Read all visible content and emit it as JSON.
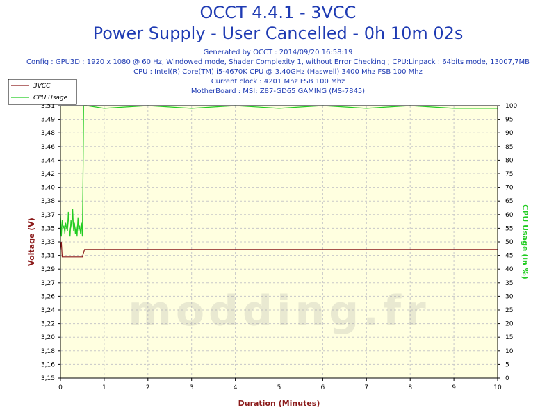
{
  "header": {
    "title": "OCCT 4.4.1 - 3VCC",
    "subtitle": "Power Supply - User Cancelled - 0h 10m 02s",
    "info_lines": [
      "Generated by OCCT : 2014/09/20 16:58:19",
      "Config : GPU3D : 1920 x 1080 @ 60 Hz, Windowed mode, Shader Complexity 1, without Error Checking ; CPU:Linpack : 64bits mode, 13007,7MB",
      "CPU : Intel(R) Core(TM) i5-4670K CPU @ 3.40GHz (Haswell) 3400 Mhz FSB 100 Mhz",
      "Current clock : 4201 Mhz FSB 100 Mhz",
      "MotherBoard : MSI: Z87-GD65 GAMING (MS-7845)"
    ]
  },
  "watermark": "modding.fr",
  "colors": {
    "title": "#1f3bb3",
    "voltage": "#8b1a1a",
    "cpu": "#22cc22",
    "plot_bg": "#ffffe0",
    "grid": "#c8c8c8"
  },
  "chart_data": {
    "type": "line",
    "xlabel": "Duration (Minutes)",
    "ylabel_left": "Voltage (V)",
    "ylabel_right": "CPU Usage (in %)",
    "xlim": [
      0,
      10
    ],
    "ylim_left": [
      3.15,
      3.51
    ],
    "ylim_right": [
      0,
      100
    ],
    "x_ticks": [
      "0",
      "1",
      "2",
      "3",
      "4",
      "5",
      "6",
      "7",
      "8",
      "9",
      "10"
    ],
    "y_left_ticks": [
      "3,15",
      "3,16",
      "3,18",
      "3,20",
      "3,22",
      "3,24",
      "3,26",
      "3,27",
      "3,29",
      "3,31",
      "3,33",
      "3,35",
      "3,37",
      "3,38",
      "3,40",
      "3,42",
      "3,44",
      "3,46",
      "3,48",
      "3,49",
      "3,51"
    ],
    "y_right_ticks": [
      "0",
      "5",
      "10",
      "15",
      "20",
      "25",
      "30",
      "35",
      "40",
      "45",
      "50",
      "55",
      "60",
      "65",
      "70",
      "75",
      "80",
      "85",
      "90",
      "95",
      "100"
    ],
    "legend_position": "top-left",
    "grid": true,
    "series": [
      {
        "name": "3VCC",
        "axis": "left",
        "x": [
          0,
          0.02,
          0.04,
          0.05,
          0.1,
          0.3,
          0.5,
          0.55,
          0.6,
          1.0,
          2.0,
          3.0,
          4.0,
          5.0,
          5.3,
          5.35,
          6.0,
          7.0,
          8.0,
          9.0,
          10.0
        ],
        "values": [
          3.32,
          3.33,
          3.31,
          3.31,
          3.31,
          3.31,
          3.31,
          3.32,
          3.32,
          3.32,
          3.32,
          3.32,
          3.32,
          3.32,
          3.32,
          3.32,
          3.32,
          3.32,
          3.32,
          3.32,
          3.32
        ]
      },
      {
        "name": "CPU Usage",
        "axis": "right",
        "x": [
          0,
          0.02,
          0.04,
          0.06,
          0.08,
          0.1,
          0.12,
          0.14,
          0.16,
          0.18,
          0.2,
          0.22,
          0.24,
          0.26,
          0.28,
          0.3,
          0.32,
          0.34,
          0.36,
          0.38,
          0.4,
          0.42,
          0.44,
          0.46,
          0.48,
          0.5,
          0.52,
          0.53,
          0.55,
          0.6,
          1.0,
          2.0,
          3.0,
          4.0,
          5.0,
          6.0,
          7.0,
          8.0,
          9.0,
          10.0
        ],
        "values": [
          60,
          52,
          58,
          55,
          56,
          53,
          57,
          55,
          54,
          61,
          55,
          52,
          58,
          55,
          62,
          54,
          57,
          53,
          56,
          52,
          59,
          54,
          56,
          53,
          57,
          52,
          80,
          100,
          100,
          100,
          99,
          100,
          99,
          100,
          99,
          100,
          99,
          100,
          99,
          99
        ]
      }
    ]
  }
}
